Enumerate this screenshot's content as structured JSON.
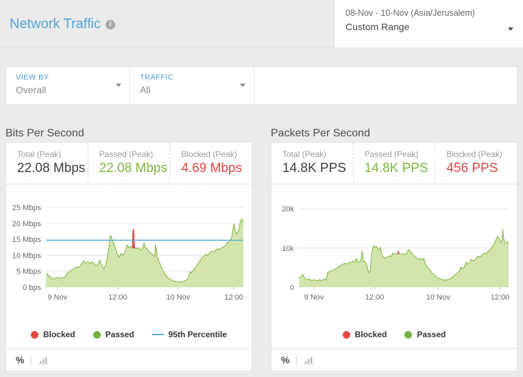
{
  "header": {
    "title": "Network Traffic",
    "date_range": "08-Nov - 10-Nov (Asia/Jerusalem)",
    "range_label": "Custom Range"
  },
  "icons": {
    "info": "i"
  },
  "filters": {
    "view_by": {
      "label": "VIEW BY",
      "value": "Overall"
    },
    "traffic": {
      "label": "TRAFFIC",
      "value": "All"
    }
  },
  "colors": {
    "accent_blue": "#58a7d6",
    "passed_green": "#7cb540",
    "blocked_red": "#dc4540",
    "percentile_blue": "#54abd4",
    "area_fill": "#cde2a4",
    "area_stroke": "#8eba4f"
  },
  "panels": {
    "bits": {
      "title": "Bits Per Second",
      "stats": {
        "total": {
          "label": "Total (Peak)",
          "value": "22.08 Mbps"
        },
        "passed": {
          "label": "Passed (Peak)",
          "value": "22.08 Mbps"
        },
        "blocked": {
          "label": "Blocked (Peak)",
          "value": "4.69 Mbps"
        }
      },
      "legend": {
        "blocked": "Blocked",
        "passed": "Passed",
        "percentile": "95th Percentile"
      },
      "footer": {
        "percent_label": "%"
      }
    },
    "packets": {
      "title": "Packets Per Second",
      "stats": {
        "total": {
          "label": "Total (Peak)",
          "value": "14.8K PPS"
        },
        "passed": {
          "label": "Passed (Peak)",
          "value": "14.8K PPS"
        },
        "blocked": {
          "label": "Blocked (Peak)",
          "value": "456 PPS"
        }
      },
      "legend": {
        "blocked": "Blocked",
        "passed": "Passed"
      },
      "footer": {
        "percent_label": "%"
      }
    }
  },
  "chart_data": [
    {
      "type": "area",
      "title": "Bits Per Second",
      "unit": "Mbps",
      "ylim": [
        0,
        27.5
      ],
      "grid": true,
      "y_ticks": [
        {
          "v": 25,
          "label": "25 Mbps"
        },
        {
          "v": 20,
          "label": "20 Mbps"
        },
        {
          "v": 15,
          "label": "15 Mbps"
        },
        {
          "v": 10,
          "label": "10 Mbps"
        },
        {
          "v": 5,
          "label": "5 Mbps"
        },
        {
          "v": 0,
          "label": "0 bps"
        }
      ],
      "x_ticks": [
        {
          "f": 5.8,
          "label": "9 Nov"
        },
        {
          "f": 36.4,
          "label": "12:00"
        },
        {
          "f": 67.0,
          "label": "10 Nov"
        },
        {
          "f": 95.2,
          "label": "12:00"
        }
      ],
      "percentile_95": 14.7,
      "series": [
        {
          "name": "Passed",
          "kind": "area-to-zero",
          "fill": "#cde2a4",
          "stroke": "#8eba4f",
          "points": [
            [
              0,
              4.0
            ],
            [
              0.7,
              4.2
            ],
            [
              1.7,
              3.4
            ],
            [
              2.7,
              2.9
            ],
            [
              4.1,
              2.6
            ],
            [
              5.4,
              3.1
            ],
            [
              6.8,
              2.8
            ],
            [
              8.2,
              3.1
            ],
            [
              9.5,
              3.0
            ],
            [
              10.9,
              4.4
            ],
            [
              12.6,
              5.2
            ],
            [
              14.3,
              5.8
            ],
            [
              15.6,
              6.4
            ],
            [
              16.7,
              6.1
            ],
            [
              17.7,
              7.0
            ],
            [
              19,
              8.3
            ],
            [
              20.1,
              7.5
            ],
            [
              21.4,
              8.0
            ],
            [
              22.4,
              7.4
            ],
            [
              23.5,
              7.9
            ],
            [
              24.5,
              7.2
            ],
            [
              25.5,
              6.7
            ],
            [
              26.5,
              7.3
            ],
            [
              27.2,
              8.5
            ],
            [
              28.2,
              6.9
            ],
            [
              29.3,
              5.7
            ],
            [
              30.3,
              7.0
            ],
            [
              31.3,
              10.2
            ],
            [
              32,
              13.0
            ],
            [
              32.7,
              16.4
            ],
            [
              33.3,
              15.3
            ],
            [
              34,
              14.1
            ],
            [
              35,
              12.6
            ],
            [
              36.1,
              10.4
            ],
            [
              37.1,
              9.4
            ],
            [
              38.1,
              10.6
            ],
            [
              39.1,
              9.9
            ],
            [
              40.1,
              11.4
            ],
            [
              41.2,
              13.2
            ],
            [
              41.8,
              12.4
            ],
            [
              42.9,
              12.8
            ],
            [
              43.9,
              12.3
            ],
            [
              44.9,
              12.4
            ],
            [
              45.9,
              12.1
            ],
            [
              46.9,
              12.4
            ],
            [
              48,
              11.7
            ],
            [
              49,
              12.1
            ],
            [
              49.7,
              13.8
            ],
            [
              50.3,
              12.6
            ],
            [
              51.4,
              11.8
            ],
            [
              52.4,
              11.1
            ],
            [
              53.4,
              10.6
            ],
            [
              54.4,
              10.1
            ],
            [
              55.1,
              9.7
            ],
            [
              55.5,
              13.4
            ],
            [
              55.9,
              11.9
            ],
            [
              56.5,
              9.2
            ],
            [
              57.5,
              7.8
            ],
            [
              58.5,
              6.2
            ],
            [
              59.5,
              5.0
            ],
            [
              60.5,
              3.9
            ],
            [
              61.6,
              3.1
            ],
            [
              62.6,
              2.6
            ],
            [
              63.9,
              2.1
            ],
            [
              65.3,
              1.8
            ],
            [
              66.7,
              1.6
            ],
            [
              68,
              1.6
            ],
            [
              69.4,
              1.8
            ],
            [
              70.7,
              2.1
            ],
            [
              71.8,
              2.5
            ],
            [
              72.4,
              3.4
            ],
            [
              73.1,
              4.9
            ],
            [
              73.8,
              4.5
            ],
            [
              74.8,
              5.5
            ],
            [
              75.9,
              6.4
            ],
            [
              76.9,
              7.3
            ],
            [
              77.9,
              8.2
            ],
            [
              78.9,
              9.0
            ],
            [
              79.9,
              9.8
            ],
            [
              81,
              10.3
            ],
            [
              82,
              10.0
            ],
            [
              83,
              10.9
            ],
            [
              84,
              11.3
            ],
            [
              85,
              11.0
            ],
            [
              86.1,
              11.7
            ],
            [
              87.1,
              12.1
            ],
            [
              88.1,
              11.8
            ],
            [
              89.1,
              12.4
            ],
            [
              90.1,
              12.6
            ],
            [
              91.2,
              13.2
            ],
            [
              91.8,
              14.1
            ],
            [
              92.5,
              13.8
            ],
            [
              93.2,
              14.7
            ],
            [
              93.9,
              15.1
            ],
            [
              94.6,
              17.4
            ],
            [
              95.2,
              19.8
            ],
            [
              95.9,
              17.9
            ],
            [
              96.6,
              16.7
            ],
            [
              97.3,
              17.3
            ],
            [
              98,
              18.6
            ],
            [
              98.6,
              20.9
            ],
            [
              99.3,
              21.3
            ],
            [
              100,
              20.2
            ]
          ]
        },
        {
          "name": "Blocked",
          "kind": "spike",
          "fill": "#e04a42",
          "stroke": "#d9403a",
          "points": [
            [
              43.8,
              12.3
            ],
            [
              44.0,
              16.5
            ],
            [
              44.2,
              18.3
            ],
            [
              44.5,
              17.9
            ],
            [
              44.7,
              14.0
            ],
            [
              45,
              12.3
            ]
          ]
        }
      ]
    },
    {
      "type": "area",
      "title": "Packets Per Second",
      "unit": "k PPS",
      "ylim": [
        0,
        22.4
      ],
      "grid": true,
      "y_ticks": [
        {
          "v": 20,
          "label": "20k"
        },
        {
          "v": 10,
          "label": "10k"
        },
        {
          "v": 0,
          "label": "0"
        }
      ],
      "x_ticks": [
        {
          "f": 7.2,
          "label": "9 Nov"
        },
        {
          "f": 36.1,
          "label": "12:00"
        },
        {
          "f": 66.4,
          "label": "10 Nov"
        },
        {
          "f": 95.9,
          "label": "12:00"
        }
      ],
      "series": [
        {
          "name": "Passed",
          "kind": "area-to-zero",
          "fill": "#cde2a4",
          "stroke": "#8eba4f",
          "points": [
            [
              0,
              2.4
            ],
            [
              1.2,
              2.6
            ],
            [
              1.9,
              3.3
            ],
            [
              2.8,
              2.2
            ],
            [
              3.7,
              1.9
            ],
            [
              5,
              2.1
            ],
            [
              5.9,
              1.7
            ],
            [
              7.2,
              1.9
            ],
            [
              8.4,
              1.6
            ],
            [
              9.7,
              1.9
            ],
            [
              10.9,
              1.7
            ],
            [
              12.1,
              2.1
            ],
            [
              13.1,
              1.9
            ],
            [
              13.7,
              3.7
            ],
            [
              14.6,
              4.0
            ],
            [
              15.9,
              4.3
            ],
            [
              17.1,
              4.5
            ],
            [
              18.4,
              5.0
            ],
            [
              19.6,
              5.4
            ],
            [
              20.9,
              5.9
            ],
            [
              22.1,
              6.1
            ],
            [
              23.1,
              5.9
            ],
            [
              24,
              6.4
            ],
            [
              24.9,
              6.2
            ],
            [
              25.9,
              6.7
            ],
            [
              26.8,
              6.4
            ],
            [
              27.4,
              7.3
            ],
            [
              28,
              6.5
            ],
            [
              29,
              6.4
            ],
            [
              29.6,
              7.0
            ],
            [
              30.2,
              9.3
            ],
            [
              30.8,
              6.5
            ],
            [
              31.5,
              6.6
            ],
            [
              32.1,
              6.1
            ],
            [
              32.7,
              5.0
            ],
            [
              33.3,
              3.7
            ],
            [
              34,
              4.2
            ],
            [
              34.6,
              8.2
            ],
            [
              35.2,
              9.9
            ],
            [
              35.8,
              10.6
            ],
            [
              36.4,
              10.1
            ],
            [
              37.1,
              10.4
            ],
            [
              37.7,
              9.7
            ],
            [
              38.3,
              9.6
            ],
            [
              38.9,
              10.2
            ],
            [
              39.6,
              8.1
            ],
            [
              40.2,
              7.8
            ],
            [
              41.1,
              7.4
            ],
            [
              42.1,
              7.7
            ],
            [
              43,
              8.0
            ],
            [
              43.9,
              7.8
            ],
            [
              44.9,
              8.7
            ],
            [
              45.8,
              8.5
            ],
            [
              46.7,
              8.4
            ],
            [
              47.7,
              8.7
            ],
            [
              48.6,
              8.4
            ],
            [
              49.5,
              8.3
            ],
            [
              50.5,
              8.6
            ],
            [
              51.4,
              8.5
            ],
            [
              52,
              9.4
            ],
            [
              52.6,
              9.6
            ],
            [
              53.6,
              8.8
            ],
            [
              54.5,
              8.2
            ],
            [
              55.5,
              7.7
            ],
            [
              56.4,
              7.4
            ],
            [
              57.3,
              7.1
            ],
            [
              57.9,
              7.4
            ],
            [
              58.9,
              6.9
            ],
            [
              59.5,
              7.4
            ],
            [
              60.4,
              5.9
            ],
            [
              61.4,
              5.1
            ],
            [
              62.3,
              4.5
            ],
            [
              63.2,
              3.9
            ],
            [
              64.2,
              3.3
            ],
            [
              65.1,
              2.9
            ],
            [
              66,
              2.5
            ],
            [
              67,
              2.2
            ],
            [
              68.2,
              2.0
            ],
            [
              69.5,
              1.8
            ],
            [
              70.7,
              1.9
            ],
            [
              72,
              2.1
            ],
            [
              72.9,
              2.4
            ],
            [
              73.8,
              2.9
            ],
            [
              74.8,
              3.3
            ],
            [
              75.7,
              3.7
            ],
            [
              76.6,
              4.2
            ],
            [
              77.3,
              5.2
            ],
            [
              77.9,
              4.7
            ],
            [
              78.8,
              5.1
            ],
            [
              79.8,
              6.4
            ],
            [
              80.4,
              5.9
            ],
            [
              81.3,
              6.2
            ],
            [
              82.2,
              7.1
            ],
            [
              82.9,
              6.7
            ],
            [
              83.8,
              6.9
            ],
            [
              84.7,
              7.5
            ],
            [
              85.7,
              7.9
            ],
            [
              86.6,
              7.7
            ],
            [
              87.5,
              8.3
            ],
            [
              88.5,
              8.8
            ],
            [
              89.4,
              8.5
            ],
            [
              90.3,
              9.2
            ],
            [
              91.3,
              9.6
            ],
            [
              92.2,
              10.3
            ],
            [
              93.1,
              10.9
            ],
            [
              93.8,
              11.9
            ],
            [
              94.4,
              12.6
            ],
            [
              95,
              12.9
            ],
            [
              95.6,
              12.1
            ],
            [
              96.3,
              11.4
            ],
            [
              96.9,
              12.0
            ],
            [
              97.2,
              14.8
            ],
            [
              97.5,
              13.0
            ],
            [
              98.1,
              11.4
            ],
            [
              98.8,
              11.2
            ],
            [
              99.4,
              11.6
            ],
            [
              100,
              11.3
            ]
          ]
        },
        {
          "name": "Blocked",
          "kind": "spike",
          "fill": "#e04a42",
          "stroke": "#d9403a",
          "points": [
            [
              47.1,
              8.6
            ],
            [
              47.4,
              9.2
            ],
            [
              47.7,
              8.6
            ]
          ]
        }
      ]
    }
  ]
}
